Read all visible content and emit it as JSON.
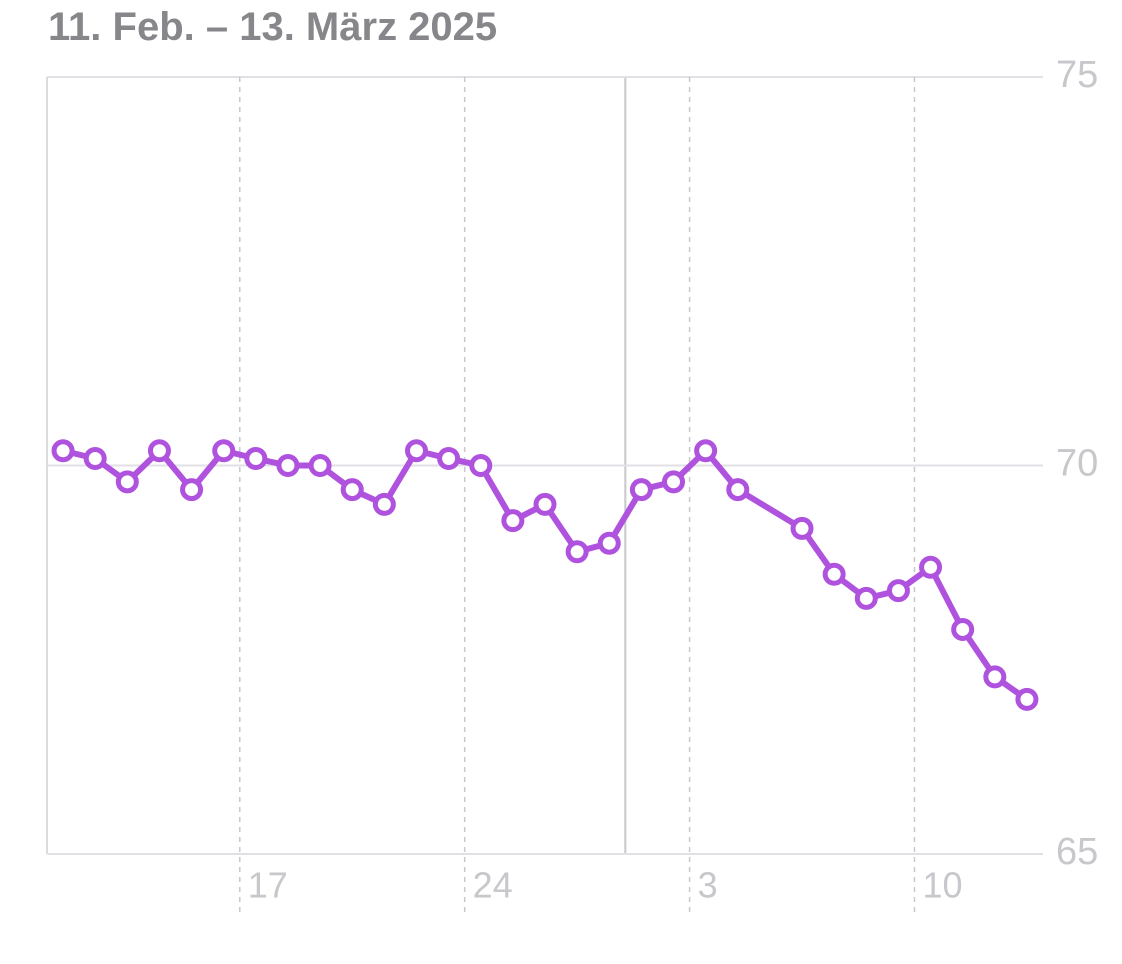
{
  "chart_data": {
    "type": "line",
    "title": "11. Feb. – 13. März 2025",
    "categories": [
      null,
      null,
      null,
      null,
      null,
      null,
      "17",
      null,
      null,
      null,
      null,
      null,
      null,
      "24",
      null,
      null,
      null,
      null,
      null,
      null,
      "3",
      null,
      null,
      null,
      null,
      null,
      null,
      "10",
      null,
      null,
      null
    ],
    "series": [
      {
        "color": "#af52de",
        "values": [
          70.19,
          70.09,
          69.79,
          70.19,
          69.69,
          70.19,
          70.09,
          70.0,
          70.0,
          69.69,
          69.5,
          70.19,
          70.09,
          70.0,
          69.29,
          69.5,
          68.89,
          69.0,
          69.69,
          69.79,
          70.19,
          69.69,
          null,
          69.19,
          68.6,
          68.29,
          68.39,
          68.69,
          67.89,
          67.28,
          66.99
        ]
      }
    ],
    "ylim": [
      65,
      75
    ],
    "yticks": [
      65,
      70,
      75
    ],
    "grid": true
  }
}
